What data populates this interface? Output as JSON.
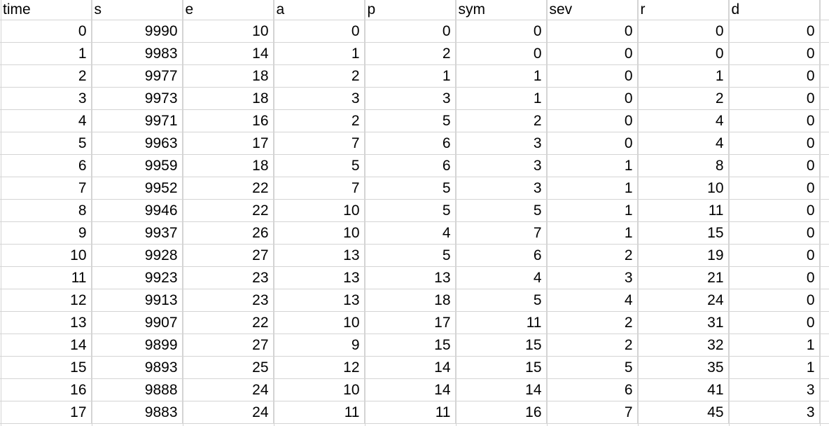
{
  "columns": [
    "time",
    "s",
    "e",
    "a",
    "p",
    "sym",
    "sev",
    "r",
    "d"
  ],
  "rows": [
    [
      "0",
      "9990",
      "10",
      "0",
      "0",
      "0",
      "0",
      "0",
      "0"
    ],
    [
      "1",
      "9983",
      "14",
      "1",
      "2",
      "0",
      "0",
      "0",
      "0"
    ],
    [
      "2",
      "9977",
      "18",
      "2",
      "1",
      "1",
      "0",
      "1",
      "0"
    ],
    [
      "3",
      "9973",
      "18",
      "3",
      "3",
      "1",
      "0",
      "2",
      "0"
    ],
    [
      "4",
      "9971",
      "16",
      "2",
      "5",
      "2",
      "0",
      "4",
      "0"
    ],
    [
      "5",
      "9963",
      "17",
      "7",
      "6",
      "3",
      "0",
      "4",
      "0"
    ],
    [
      "6",
      "9959",
      "18",
      "5",
      "6",
      "3",
      "1",
      "8",
      "0"
    ],
    [
      "7",
      "9952",
      "22",
      "7",
      "5",
      "3",
      "1",
      "10",
      "0"
    ],
    [
      "8",
      "9946",
      "22",
      "10",
      "5",
      "5",
      "1",
      "11",
      "0"
    ],
    [
      "9",
      "9937",
      "26",
      "10",
      "4",
      "7",
      "1",
      "15",
      "0"
    ],
    [
      "10",
      "9928",
      "27",
      "13",
      "5",
      "6",
      "2",
      "19",
      "0"
    ],
    [
      "11",
      "9923",
      "23",
      "13",
      "13",
      "4",
      "3",
      "21",
      "0"
    ],
    [
      "12",
      "9913",
      "23",
      "13",
      "18",
      "5",
      "4",
      "24",
      "0"
    ],
    [
      "13",
      "9907",
      "22",
      "10",
      "17",
      "11",
      "2",
      "31",
      "0"
    ],
    [
      "14",
      "9899",
      "27",
      "9",
      "15",
      "15",
      "2",
      "32",
      "1"
    ],
    [
      "15",
      "9893",
      "25",
      "12",
      "14",
      "15",
      "5",
      "35",
      "1"
    ],
    [
      "16",
      "9888",
      "24",
      "10",
      "14",
      "14",
      "6",
      "41",
      "3"
    ],
    [
      "17",
      "9883",
      "24",
      "11",
      "11",
      "16",
      "7",
      "45",
      "3"
    ]
  ]
}
